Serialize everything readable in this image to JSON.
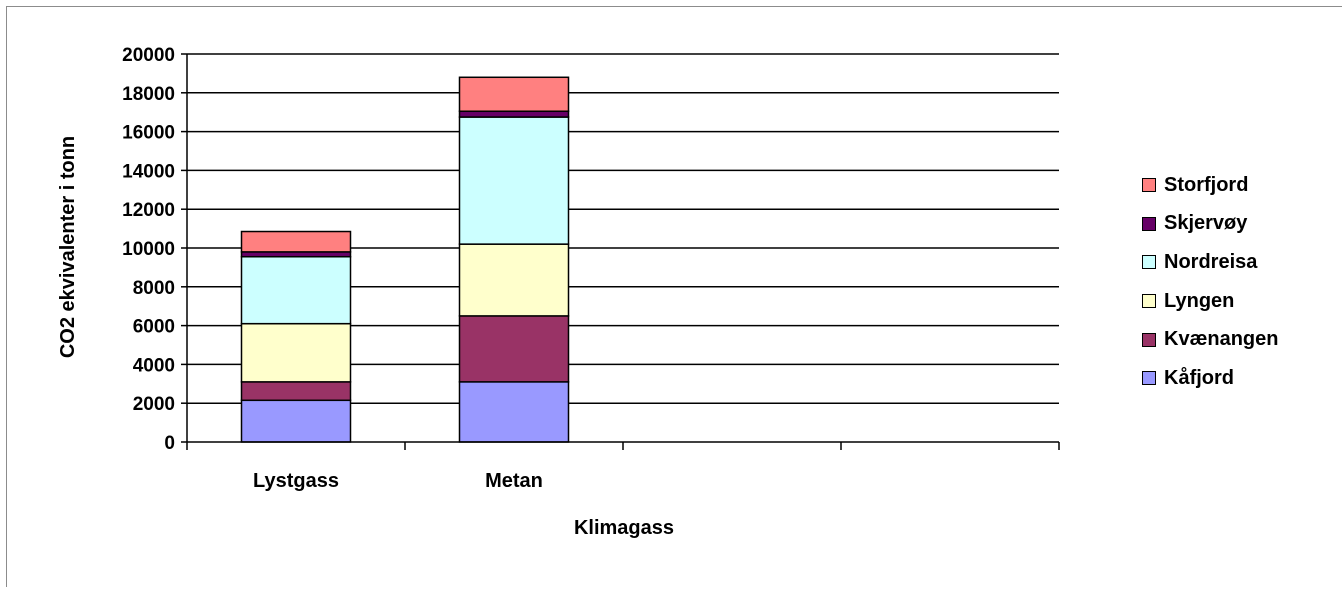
{
  "chart_data": {
    "type": "bar",
    "stacked": true,
    "title": "",
    "xlabel": "Klimagass",
    "ylabel": "CO2 ekvivalenter i tonn",
    "ylim": [
      0,
      20000
    ],
    "yticks": [
      "0",
      "2000",
      "4000",
      "6000",
      "8000",
      "10000",
      "12000",
      "14000",
      "16000",
      "18000",
      "20000"
    ],
    "categories": [
      "Lystgass",
      "Metan",
      "",
      ""
    ],
    "series": [
      {
        "name": "Kåfjord",
        "color": "#9999ff",
        "values": [
          2150,
          3100,
          0,
          0
        ]
      },
      {
        "name": "Kvænangen",
        "color": "#993366",
        "values": [
          950,
          3400,
          0,
          0
        ]
      },
      {
        "name": "Lyngen",
        "color": "#ffffcc",
        "values": [
          3000,
          3700,
          0,
          0
        ]
      },
      {
        "name": "Nordreisa",
        "color": "#ccffff",
        "values": [
          3450,
          6550,
          0,
          0
        ]
      },
      {
        "name": "Skjervøy",
        "color": "#660066",
        "values": [
          250,
          300,
          0,
          0
        ]
      },
      {
        "name": "Storfjord",
        "color": "#ff8080",
        "values": [
          1050,
          1750,
          0,
          0
        ]
      }
    ],
    "grid": true,
    "legend_position": "right"
  }
}
